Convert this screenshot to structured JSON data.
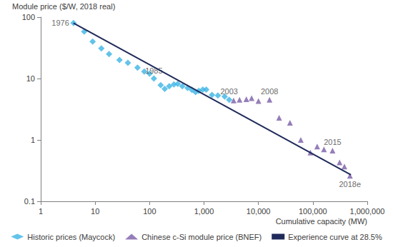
{
  "chart_data": {
    "type": "scatter",
    "y_label": "Module price ($/W, 2018 real)",
    "x_label": "Cumulative capacity (MW)",
    "log": true,
    "grid": false,
    "legend": "bottom",
    "xlim": [
      1,
      1000000
    ],
    "xticks": [
      1,
      10,
      100,
      {
        "value": 1000,
        "label": "1,000"
      },
      {
        "value": 10000,
        "label": "10,000"
      },
      {
        "value": 100000,
        "label": "100,000"
      },
      {
        "value": 1000000,
        "label": "1,000,000"
      }
    ],
    "ylim": [
      0.1,
      100
    ],
    "yticks": [
      0.1,
      1,
      10,
      100
    ],
    "series": [
      {
        "name": "Historic prices (Maycock)",
        "type": "scatter",
        "marker": "diamond",
        "color": "#3cb4e5",
        "x": [
          4,
          6.3,
          9,
          13,
          18,
          28,
          40,
          60,
          80,
          100,
          120,
          160,
          190,
          230,
          280,
          330,
          400,
          500,
          600,
          700,
          800,
          950,
          1100,
          1400,
          1800,
          2400,
          2900
        ],
        "values": [
          80,
          58,
          40,
          31,
          25,
          20,
          18,
          15,
          13,
          12,
          10,
          7.8,
          6.8,
          7.5,
          8,
          8.2,
          7.5,
          7,
          6.5,
          6,
          6.3,
          6.6,
          6.6,
          5.4,
          5.3,
          5.1,
          4.5
        ]
      },
      {
        "name": "Chinese c-Si module price (BNEF)",
        "type": "scatter",
        "marker": "triangle",
        "color": "#7b5ea7",
        "x": [
          3500,
          4500,
          6000,
          7500,
          10000,
          16000,
          24000,
          38000,
          60000,
          90000,
          120000,
          160000,
          230000,
          310000,
          380000,
          480000
        ],
        "values": [
          4.4,
          4.5,
          4.6,
          4.8,
          4.3,
          4.5,
          2.3,
          1.9,
          1.0,
          0.62,
          0.78,
          0.7,
          0.67,
          0.43,
          0.37,
          0.26
        ]
      },
      {
        "name": "Experience curve at 28.5%",
        "type": "line",
        "line_style": "solid",
        "color": "#1f2a5a",
        "x": [
          4,
          500000
        ],
        "values": [
          80,
          0.27
        ]
      }
    ],
    "annotations": [
      {
        "text": "1976",
        "x": 4,
        "y": 80
      },
      {
        "text": "1985",
        "x": 120,
        "y": 10
      },
      {
        "text": "2003",
        "x": 2900,
        "y": 4.5
      },
      {
        "text": "2008",
        "x": 16000,
        "y": 4.5
      },
      {
        "text": "2015",
        "x": 230000,
        "y": 0.67
      },
      {
        "text": "2018e",
        "x": 480000,
        "y": 0.26
      }
    ]
  }
}
